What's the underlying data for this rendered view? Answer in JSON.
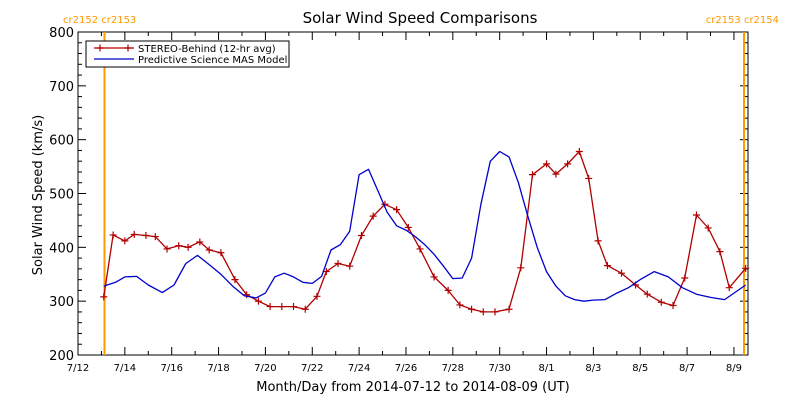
{
  "chart_data": {
    "type": "line",
    "title": "Solar Wind Speed Comparisons",
    "xlabel": "Month/Day from 2014-07-12 to 2014-08-09 (UT)",
    "ylabel": "Solar Wind Speed (km/s)",
    "ylim": [
      200,
      800
    ],
    "yticks": [
      200,
      300,
      400,
      500,
      600,
      700,
      800
    ],
    "xlim_days": [
      0,
      28.6
    ],
    "xticks": [
      {
        "day": 0,
        "label": "7/12"
      },
      {
        "day": 2,
        "label": "7/14"
      },
      {
        "day": 4,
        "label": "7/16"
      },
      {
        "day": 6,
        "label": "7/18"
      },
      {
        "day": 8,
        "label": "7/20"
      },
      {
        "day": 10,
        "label": "7/22"
      },
      {
        "day": 12,
        "label": "7/24"
      },
      {
        "day": 14,
        "label": "7/26"
      },
      {
        "day": 16,
        "label": "7/28"
      },
      {
        "day": 18,
        "label": "7/30"
      },
      {
        "day": 20,
        "label": "8/1"
      },
      {
        "day": 22,
        "label": "8/3"
      },
      {
        "day": 24,
        "label": "8/5"
      },
      {
        "day": 26,
        "label": "8/7"
      },
      {
        "day": 28,
        "label": "8/9"
      }
    ],
    "legend_position": "top-left",
    "grid": false,
    "series": [
      {
        "name": "STEREO-Behind (12-hr avg)",
        "color": "#b00000",
        "marker": "+",
        "x": [
          1.1,
          1.5,
          2.0,
          2.4,
          2.9,
          3.3,
          3.8,
          4.3,
          4.7,
          5.2,
          5.6,
          6.1,
          6.7,
          7.2,
          7.7,
          8.2,
          8.7,
          9.2,
          9.7,
          10.2,
          10.6,
          11.1,
          11.6,
          12.1,
          12.6,
          13.1,
          13.6,
          14.1,
          14.6,
          15.2,
          15.8,
          16.3,
          16.8,
          17.3,
          17.8,
          18.4,
          18.9,
          19.4,
          20.0,
          20.4,
          20.9,
          21.4,
          21.8,
          22.2,
          22.6,
          23.2,
          23.8,
          24.3,
          24.9,
          25.4,
          25.9,
          26.4,
          26.9,
          27.4,
          27.8
        ],
        "values": [
          308,
          423,
          412,
          424,
          422,
          420,
          397,
          403,
          400,
          410,
          395,
          390,
          340,
          312,
          300,
          290,
          290,
          290,
          285,
          309,
          355,
          370,
          365,
          422,
          458,
          480,
          470,
          437,
          397,
          345,
          320,
          293,
          285,
          280,
          280,
          285,
          362,
          535,
          555,
          536,
          555,
          578,
          528,
          412,
          366,
          352,
          330,
          313,
          298,
          292,
          343,
          460,
          436,
          392,
          325
        ],
        "extra_points": [
          [
            28.5,
            361
          ]
        ]
      },
      {
        "name": "Predictive Science MAS Model",
        "color": "#0000cc",
        "x": [
          1.1,
          1.6,
          2.0,
          2.5,
          3.0,
          3.6,
          4.1,
          4.6,
          5.1,
          5.6,
          6.1,
          6.6,
          7.1,
          7.6,
          8.0,
          8.4,
          8.8,
          9.2,
          9.6,
          10.0,
          10.4,
          10.8,
          11.2,
          11.6,
          12.0,
          12.4,
          12.8,
          13.2,
          13.6,
          14.0,
          14.4,
          14.8,
          15.2,
          15.6,
          16.0,
          16.4,
          16.8,
          17.2,
          17.6,
          18.0,
          18.4,
          18.8,
          19.2,
          19.6,
          20.0,
          20.4,
          20.8,
          21.2,
          21.6,
          22.0,
          22.5,
          23.0,
          23.5,
          24.0,
          24.6,
          25.2,
          25.8,
          26.4,
          27.0,
          27.6,
          28.5
        ],
        "values": [
          328,
          335,
          345,
          346,
          330,
          316,
          330,
          370,
          385,
          368,
          350,
          328,
          310,
          306,
          315,
          345,
          352,
          345,
          335,
          333,
          346,
          395,
          405,
          430,
          535,
          545,
          505,
          465,
          440,
          432,
          420,
          405,
          387,
          365,
          342,
          343,
          380,
          480,
          560,
          578,
          568,
          520,
          458,
          400,
          355,
          328,
          310,
          303,
          300,
          302,
          303,
          315,
          325,
          340,
          355,
          345,
          325,
          313,
          307,
          303,
          330
        ]
      }
    ],
    "vertical_markers": [
      {
        "day": 1.13,
        "color": "#ff9900"
      },
      {
        "day": 28.43,
        "color": "#ff9900"
      }
    ],
    "rotation_labels": {
      "left": "cr2152 cr2153",
      "right": "cr2153 cr2154"
    }
  }
}
